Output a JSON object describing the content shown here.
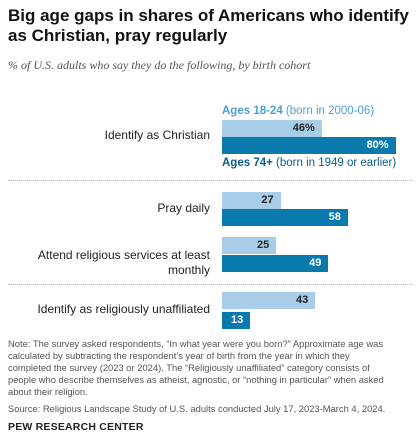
{
  "title": "Big age gaps in shares of Americans who identify as Christian, pray regularly",
  "subtitle": "% of U.S. adults who say they do the following, by birth cohort",
  "legend": {
    "young_strong": "Ages 18-24",
    "young_rest": " (born in 2000-06)",
    "old_strong": "Ages 74+",
    "old_rest": " (born in 1949 or earlier)"
  },
  "colors": {
    "young": "#a8cde8",
    "old": "#0a7aad"
  },
  "chart_data": {
    "type": "bar",
    "orientation": "horizontal",
    "categories": [
      "Identify as Christian",
      "Pray daily",
      "Attend religious services at least monthly",
      "Identify as religiously unaffiliated"
    ],
    "series": [
      {
        "name": "Ages 18-24 (born in 2000-06)",
        "values": [
          46,
          27,
          25,
          43
        ],
        "labels": [
          "46%",
          "27",
          "25",
          "43"
        ]
      },
      {
        "name": "Ages 74+ (born in 1949 or earlier)",
        "values": [
          80,
          58,
          49,
          13
        ],
        "labels": [
          "80%",
          "58",
          "49",
          "13"
        ]
      }
    ],
    "xlim": [
      0,
      100
    ]
  },
  "note": [
    "Note: The survey asked respondents, “In what year were you born?” Approximate age was",
    "calculated by subtracting the respondent’s year of birth from the year in which they",
    "completed the survey (2023 or 2024). The “Religiously unaffiliated” category consists of",
    "people who describe themselves as atheist, agnostic, or “nothing in particular” when asked",
    "about their religion."
  ],
  "source": "Source: Religious Landscape Study of U.S. adults conducted July 17, 2023-March 4, 2024.",
  "credit": "PEW RESEARCH CENTER"
}
